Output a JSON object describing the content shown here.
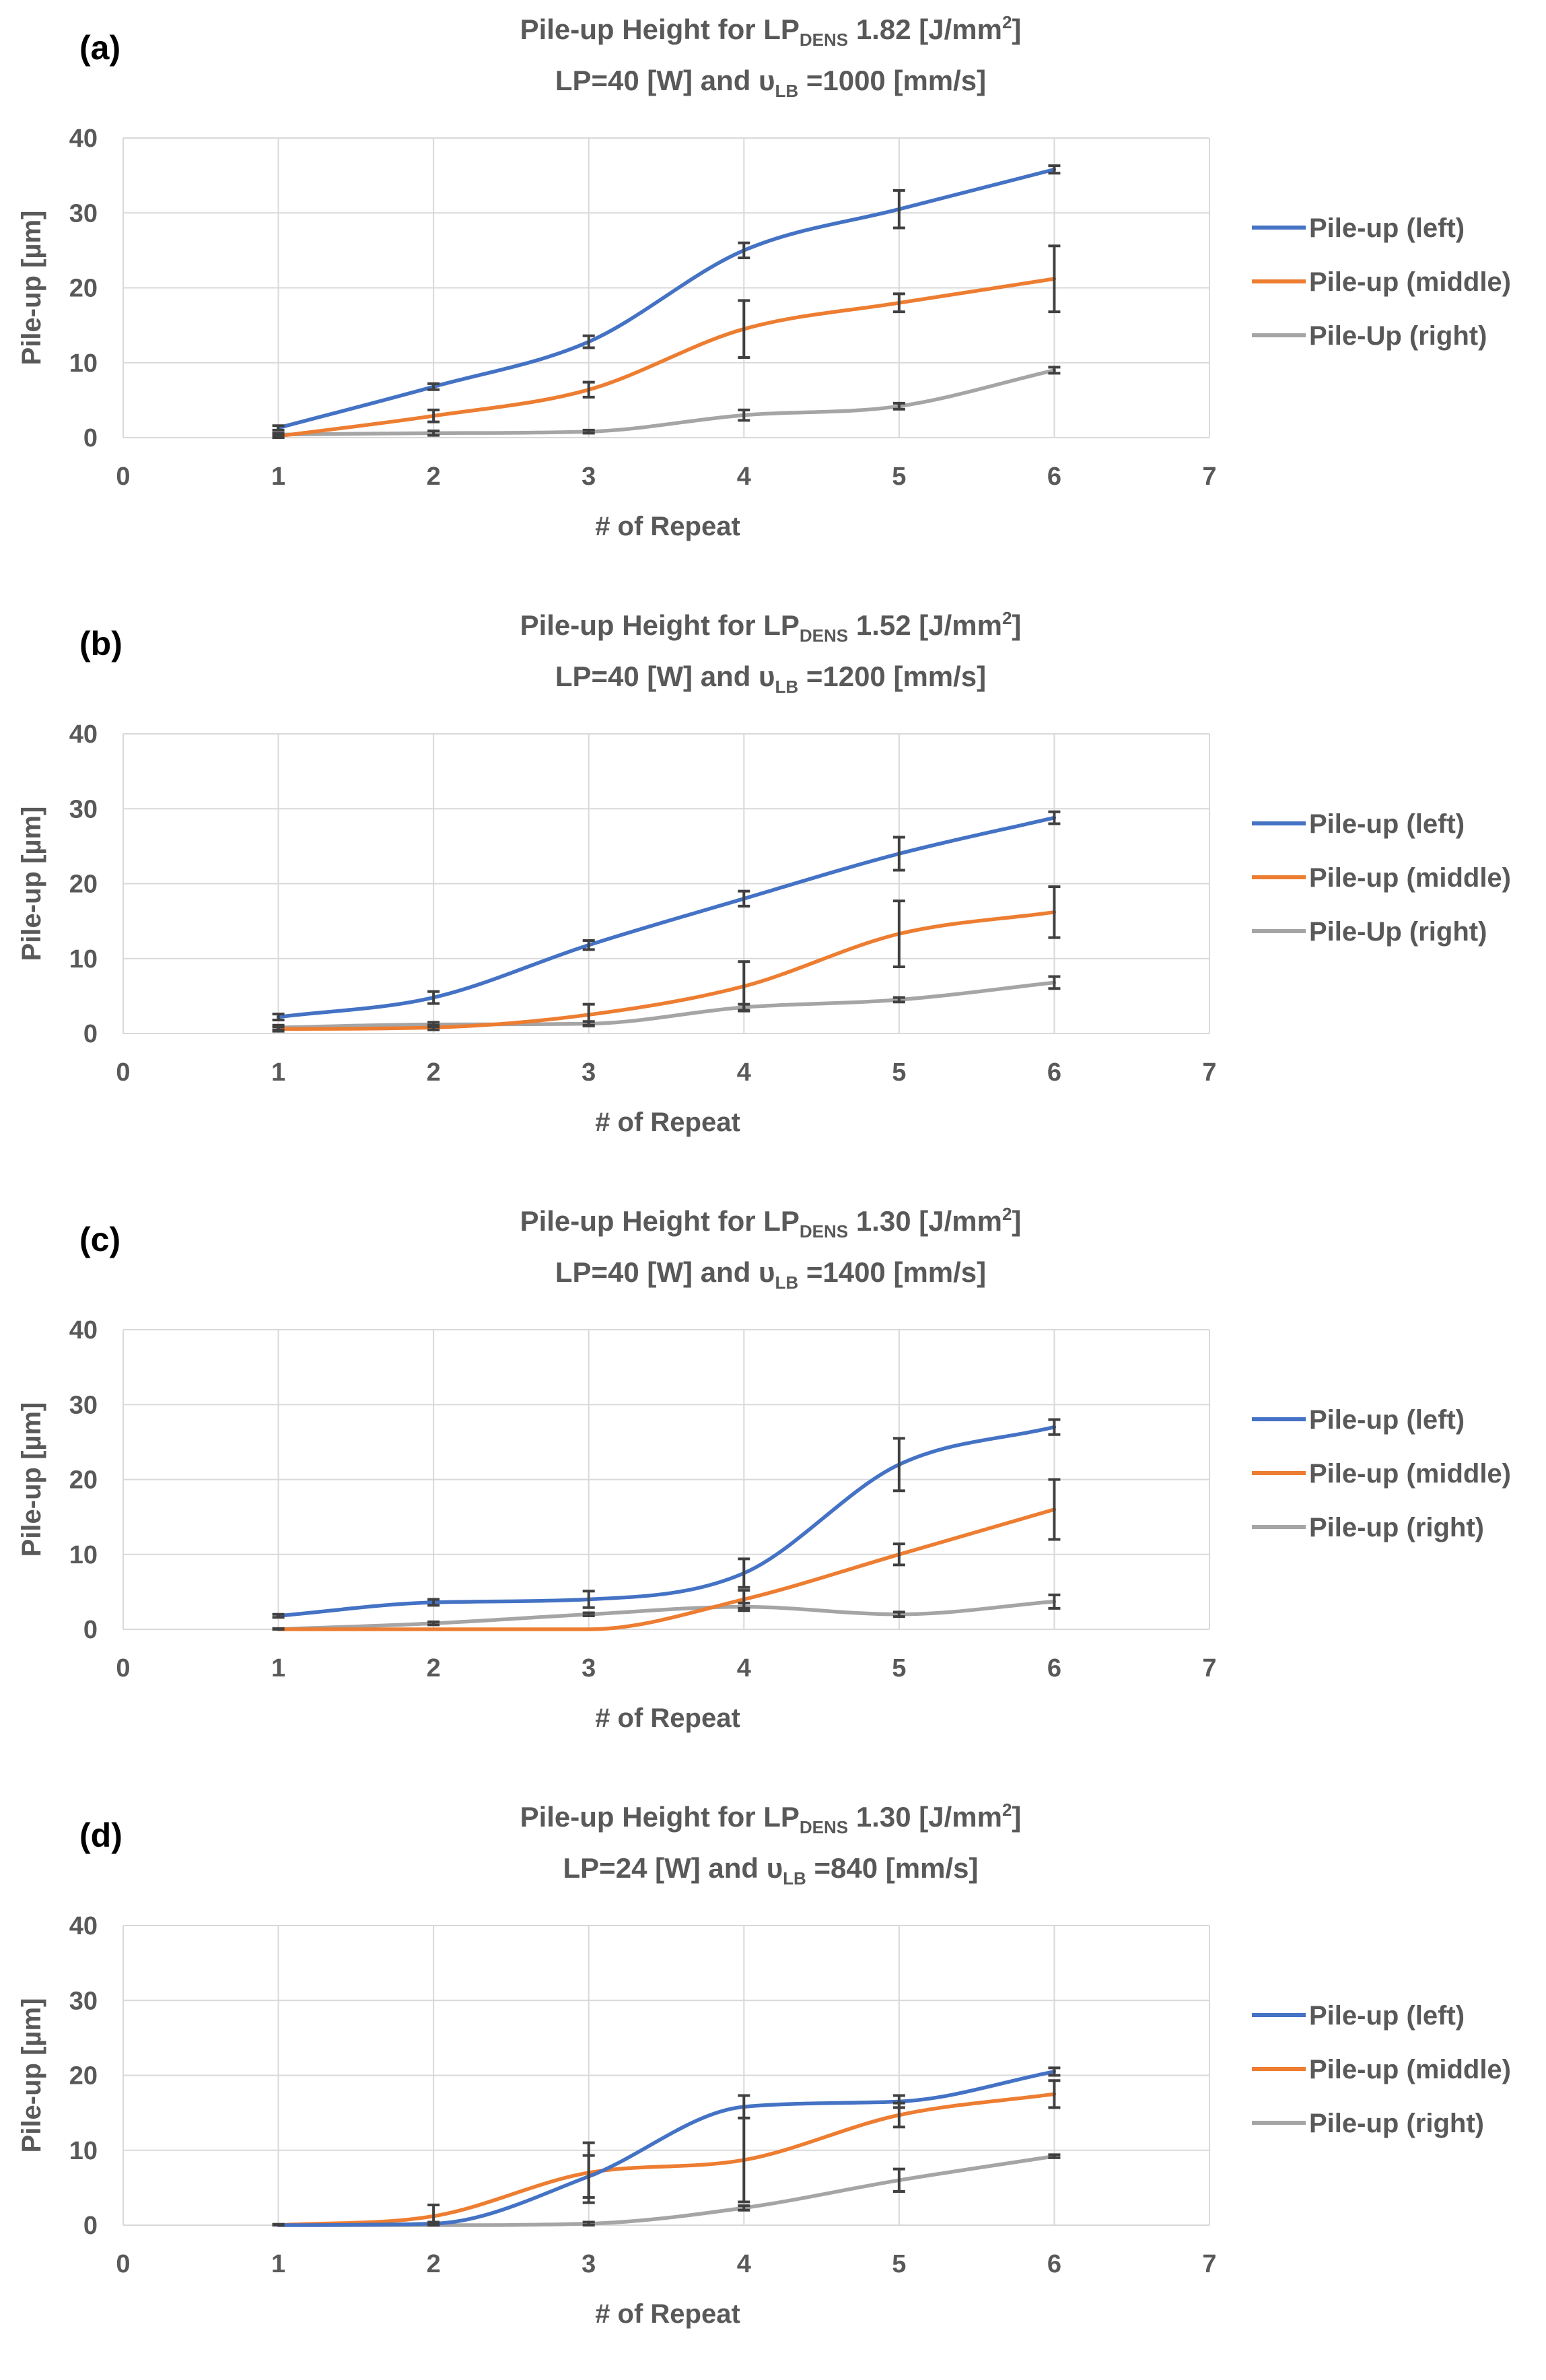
{
  "colors": {
    "left": "#4472c4",
    "middle": "#ed7d31",
    "right": "#a5a5a5",
    "text": "#595959"
  },
  "chart_data": [
    {
      "type": "line",
      "panel": "(a)",
      "title_line1": {
        "prefix": "Pile-up Height for LP",
        "sub": "DENS",
        "value": " 1.82 [J/mm",
        "sup": "2",
        "suffix": "]"
      },
      "title_line2": {
        "prefix": "LP=40 [W] and υ",
        "sub": "LB",
        "suffix": " =1000 [mm/s]"
      },
      "xlabel": "# of Repeat",
      "ylabel": "Pile-up [µm]",
      "xlim": [
        0,
        7
      ],
      "ylim": [
        0,
        40
      ],
      "xticks": [
        "0",
        "1",
        "2",
        "3",
        "4",
        "5",
        "6",
        "7"
      ],
      "yticks": [
        "0",
        "10",
        "20",
        "30",
        "40"
      ],
      "legend_position": "right",
      "x": [
        1,
        2,
        3,
        4,
        5,
        6
      ],
      "series": [
        {
          "name": "Pile-up (left)",
          "key": "left",
          "values": [
            1.3,
            6.8,
            12.8,
            25,
            30.5,
            35.8
          ],
          "errors": [
            0.3,
            0.4,
            0.8,
            1,
            2.5,
            0.5
          ]
        },
        {
          "name": "Pile-up (middle)",
          "key": "middle",
          "values": [
            0.2,
            2.9,
            6.4,
            14.5,
            18,
            21.2
          ],
          "errors": [
            0.3,
            0.8,
            1,
            3.8,
            1.2,
            4.4
          ]
        },
        {
          "name": "Pile-Up (right)",
          "key": "right",
          "values": [
            0.4,
            0.6,
            0.8,
            3,
            4.2,
            9
          ],
          "errors": [
            0.2,
            0.3,
            0.2,
            0.7,
            0.4,
            0.4
          ]
        }
      ]
    },
    {
      "type": "line",
      "panel": "(b)",
      "title_line1": {
        "prefix": "Pile-up Height for LP",
        "sub": "DENS",
        "value": " 1.52 [J/mm",
        "sup": "2",
        "suffix": "]"
      },
      "title_line2": {
        "prefix": "LP=40 [W] and υ",
        "sub": "LB",
        "suffix": " =1200 [mm/s]"
      },
      "xlabel": "# of Repeat",
      "ylabel": "Pile-up [µm]",
      "xlim": [
        0,
        7
      ],
      "ylim": [
        0,
        40
      ],
      "xticks": [
        "0",
        "1",
        "2",
        "3",
        "4",
        "5",
        "6",
        "7"
      ],
      "yticks": [
        "0",
        "10",
        "20",
        "30",
        "40"
      ],
      "legend_position": "right",
      "x": [
        1,
        2,
        3,
        4,
        5,
        6
      ],
      "series": [
        {
          "name": "Pile-up (left)",
          "key": "left",
          "values": [
            2.2,
            4.8,
            11.8,
            18,
            24,
            28.8
          ],
          "errors": [
            0.4,
            0.8,
            0.6,
            1,
            2.2,
            0.8
          ]
        },
        {
          "name": "Pile-up (middle)",
          "key": "middle",
          "values": [
            0.6,
            0.8,
            2.5,
            6.3,
            13.3,
            16.2
          ],
          "errors": [
            0.3,
            0.3,
            1.4,
            3.3,
            4.4,
            3.4
          ]
        },
        {
          "name": "Pile-Up (right)",
          "key": "right",
          "values": [
            0.8,
            1.2,
            1.3,
            3.5,
            4.5,
            6.8
          ],
          "errors": [
            0.3,
            0.3,
            0.3,
            0.4,
            0.3,
            0.8
          ]
        }
      ]
    },
    {
      "type": "line",
      "panel": "(c)",
      "title_line1": {
        "prefix": "Pile-up Height for LP",
        "sub": "DENS",
        "value": " 1.30 [J/mm",
        "sup": "2",
        "suffix": "]"
      },
      "title_line2": {
        "prefix": "LP=40 [W] and υ",
        "sub": "LB",
        "suffix": " =1400 [mm/s]"
      },
      "xlabel": "# of Repeat",
      "ylabel": "Pile-up [µm]",
      "xlim": [
        0,
        7
      ],
      "ylim": [
        0,
        40
      ],
      "xticks": [
        "0",
        "1",
        "2",
        "3",
        "4",
        "5",
        "6",
        "7"
      ],
      "yticks": [
        "0",
        "10",
        "20",
        "30",
        "40"
      ],
      "legend_position": "right",
      "x": [
        1,
        2,
        3,
        4,
        5,
        6
      ],
      "series": [
        {
          "name": "Pile-up (left)",
          "key": "left",
          "values": [
            1.8,
            3.6,
            4,
            7.5,
            22,
            27
          ],
          "errors": [
            0.2,
            0.4,
            1.1,
            1.9,
            3.5,
            1
          ]
        },
        {
          "name": "Pile-up (middle)",
          "key": "middle",
          "values": [
            0,
            0,
            0,
            4,
            10,
            16
          ],
          "errors": [
            0,
            0,
            0,
            1.2,
            1.4,
            4
          ]
        },
        {
          "name": "Pile-up (right)",
          "key": "right",
          "values": [
            0,
            0.8,
            2,
            3,
            2,
            3.7
          ],
          "errors": [
            0.1,
            0.2,
            0.2,
            0.5,
            0.3,
            0.9
          ]
        }
      ]
    },
    {
      "type": "line",
      "panel": "(d)",
      "title_line1": {
        "prefix": "Pile-up Height for LP",
        "sub": "DENS",
        "value": " 1.30 [J/mm",
        "sup": "2",
        "suffix": "]"
      },
      "title_line2": {
        "prefix": "LP=24 [W] and υ",
        "sub": "LB",
        "suffix": " =840 [mm/s]"
      },
      "xlabel": "# of Repeat",
      "ylabel": "Pile-up [µm]",
      "xlim": [
        0,
        7
      ],
      "ylim": [
        0,
        40
      ],
      "xticks": [
        "0",
        "1",
        "2",
        "3",
        "4",
        "5",
        "6",
        "7"
      ],
      "yticks": [
        "0",
        "10",
        "20",
        "30",
        "40"
      ],
      "legend_position": "right",
      "x": [
        1,
        2,
        3,
        4,
        5,
        6
      ],
      "series": [
        {
          "name": "Pile-up (left)",
          "key": "left",
          "values": [
            0,
            0.2,
            6.5,
            15.8,
            16.5,
            20.5
          ],
          "errors": [
            0.1,
            0.2,
            2.8,
            1.5,
            0.8,
            0.5
          ]
        },
        {
          "name": "Pile-up (middle)",
          "key": "middle",
          "values": [
            0,
            1.2,
            7,
            8.7,
            14.7,
            17.5
          ],
          "errors": [
            0.1,
            1.5,
            4,
            5.6,
            1.6,
            1.8
          ]
        },
        {
          "name": "Pile-up (right)",
          "key": "right",
          "values": [
            0,
            0,
            0.2,
            2.3,
            6,
            9.2
          ],
          "errors": [
            0.1,
            0.1,
            0.2,
            0.3,
            1.5,
            0.2
          ]
        }
      ]
    }
  ]
}
